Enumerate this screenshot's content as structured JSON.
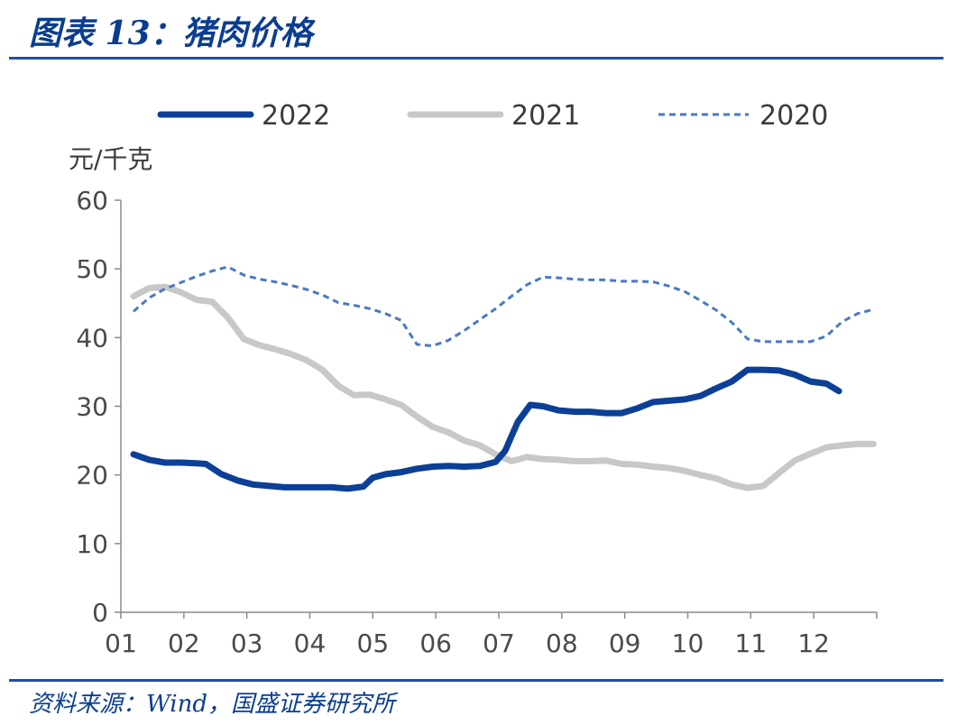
{
  "header": {
    "title": "图表 13：猪肉价格"
  },
  "footer": {
    "source": "资料来源：Wind，国盛证券研究所"
  },
  "chart_data": {
    "type": "line",
    "ylabel": "元/千克",
    "ylim": [
      0,
      60
    ],
    "yticks": [
      0,
      10,
      20,
      30,
      40,
      50,
      60
    ],
    "xticks": [
      "01",
      "02",
      "03",
      "04",
      "05",
      "06",
      "07",
      "08",
      "09",
      "10",
      "11",
      "12"
    ],
    "xlim": [
      1,
      13
    ],
    "legend_position": "top",
    "grid": false,
    "series": [
      {
        "name": "2022",
        "color": "#0c3f96",
        "style": "solid-thick",
        "x": [
          1.2,
          1.45,
          1.7,
          1.95,
          2.2,
          2.35,
          2.6,
          2.85,
          3.1,
          3.35,
          3.6,
          3.85,
          4.1,
          4.35,
          4.6,
          4.85,
          5.0,
          5.2,
          5.45,
          5.7,
          5.95,
          6.2,
          6.45,
          6.7,
          6.95,
          7.1,
          7.3,
          7.5,
          7.7,
          7.95,
          8.2,
          8.45,
          8.7,
          8.95,
          9.2,
          9.45,
          9.7,
          9.95,
          10.2,
          10.45,
          10.7,
          10.95,
          11.2,
          11.45,
          11.7,
          11.95,
          12.2,
          12.4
        ],
        "y": [
          23.0,
          22.2,
          21.8,
          21.8,
          21.7,
          21.6,
          20.1,
          19.2,
          18.6,
          18.4,
          18.2,
          18.2,
          18.2,
          18.2,
          18.0,
          18.3,
          19.6,
          20.1,
          20.4,
          20.9,
          21.2,
          21.3,
          21.2,
          21.3,
          21.9,
          23.5,
          27.7,
          30.2,
          30.0,
          29.4,
          29.2,
          29.2,
          29.0,
          29.0,
          29.7,
          30.6,
          30.8,
          31.0,
          31.5,
          32.6,
          33.6,
          35.3,
          35.3,
          35.2,
          34.6,
          33.6,
          33.3,
          32.2
        ]
      },
      {
        "name": "2021",
        "color": "#c8c8c8",
        "style": "solid-thick",
        "x": [
          1.2,
          1.45,
          1.7,
          1.95,
          2.2,
          2.45,
          2.7,
          2.95,
          3.2,
          3.45,
          3.7,
          3.95,
          4.2,
          4.45,
          4.7,
          4.95,
          5.2,
          5.45,
          5.7,
          5.95,
          6.2,
          6.45,
          6.7,
          6.95,
          7.2,
          7.45,
          7.7,
          7.95,
          8.2,
          8.45,
          8.7,
          8.95,
          9.2,
          9.45,
          9.7,
          9.95,
          10.2,
          10.45,
          10.7,
          10.95,
          11.2,
          11.45,
          11.7,
          11.95,
          12.2,
          12.45,
          12.7,
          12.95
        ],
        "y": [
          46.0,
          47.2,
          47.4,
          46.6,
          45.5,
          45.2,
          42.9,
          39.8,
          38.9,
          38.3,
          37.6,
          36.7,
          35.3,
          33.0,
          31.6,
          31.7,
          31.0,
          30.2,
          28.5,
          27.0,
          26.2,
          25.0,
          24.3,
          23.0,
          22.0,
          22.6,
          22.3,
          22.2,
          22.0,
          22.0,
          22.1,
          21.6,
          21.5,
          21.2,
          21.0,
          20.6,
          20.0,
          19.5,
          18.6,
          18.1,
          18.4,
          20.3,
          22.1,
          23.1,
          24.0,
          24.3,
          24.5,
          24.5
        ]
      },
      {
        "name": "2020",
        "color": "#4a7ac4",
        "style": "dashed",
        "x": [
          1.2,
          1.45,
          1.7,
          1.95,
          2.2,
          2.45,
          2.7,
          2.95,
          3.2,
          3.45,
          3.7,
          3.95,
          4.2,
          4.45,
          4.7,
          4.95,
          5.2,
          5.45,
          5.7,
          5.95,
          6.2,
          6.45,
          6.7,
          6.95,
          7.2,
          7.45,
          7.7,
          7.95,
          8.2,
          8.45,
          8.7,
          8.95,
          9.2,
          9.45,
          9.7,
          9.95,
          10.2,
          10.45,
          10.7,
          10.95,
          11.2,
          11.45,
          11.7,
          11.95,
          12.2,
          12.45,
          12.7,
          12.95
        ],
        "y": [
          43.8,
          45.8,
          47.1,
          48.0,
          48.9,
          49.7,
          50.3,
          49.1,
          48.5,
          48.1,
          47.6,
          47.0,
          46.2,
          45.1,
          44.7,
          44.2,
          43.5,
          42.5,
          39.0,
          38.8,
          39.6,
          41.0,
          42.6,
          44.2,
          46.0,
          47.7,
          48.8,
          48.7,
          48.5,
          48.4,
          48.4,
          48.2,
          48.2,
          48.1,
          47.5,
          46.7,
          45.4,
          44.0,
          42.2,
          39.8,
          39.4,
          39.4,
          39.4,
          39.4,
          40.2,
          42.3,
          43.5,
          44.1
        ]
      }
    ]
  }
}
